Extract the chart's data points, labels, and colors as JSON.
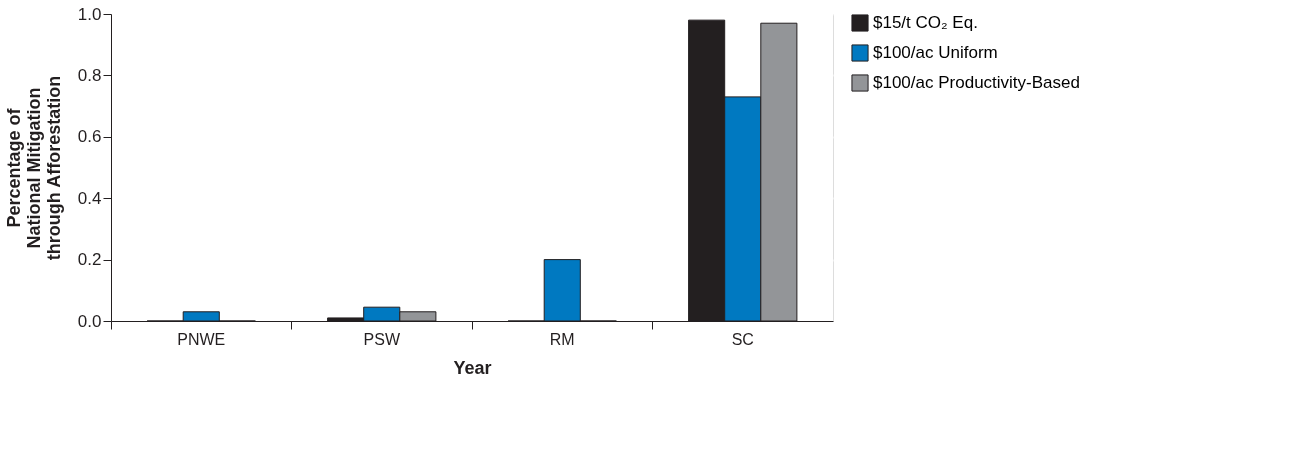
{
  "chart_data": {
    "type": "bar",
    "xlabel": "Year",
    "ylabel": "Percentage of\nNational Mitigation\nthrough Afforestation",
    "categories": [
      "PNWE",
      "PSW",
      "RM",
      "SC"
    ],
    "series": [
      {
        "name": "$15/t CO₂ Eq.",
        "color": "#231f20",
        "values": [
          0,
          0.01,
          0,
          0.98
        ]
      },
      {
        "name": "$100/ac Uniform",
        "color": "#0079c1",
        "values": [
          0.03,
          0.045,
          0.2,
          0.73
        ]
      },
      {
        "name": "$100/ac Productivity-Based",
        "color": "#939598",
        "values": [
          0,
          0.03,
          0,
          0.97
        ]
      }
    ],
    "ylim": [
      0,
      1.0
    ],
    "yticks": [
      {
        "value": 0,
        "label": "0.0"
      },
      {
        "value": 0.2,
        "label": "0.2"
      },
      {
        "value": 0.4,
        "label": "0.4"
      },
      {
        "value": 0.6,
        "label": "0.6"
      },
      {
        "value": 0.8,
        "label": "0.8"
      },
      {
        "value": 1.0,
        "label": "1.0"
      }
    ],
    "grid": "y",
    "legend": "right"
  }
}
